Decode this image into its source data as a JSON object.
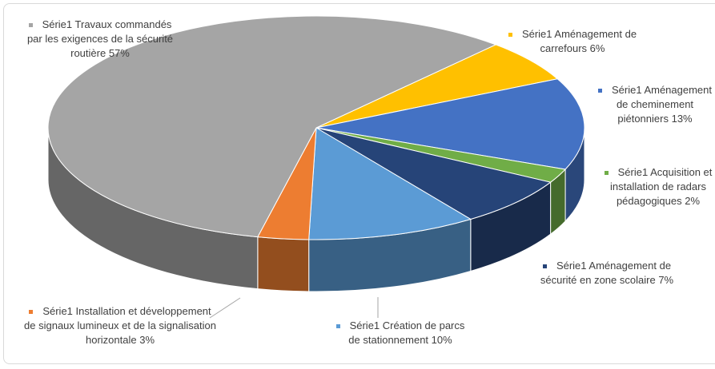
{
  "chart_data": {
    "type": "pie3d",
    "series_name": "Série1",
    "categories": [
      "Aménagement de carrefours",
      "Aménagement de cheminement piétonniers",
      "Acquisition et installation de radars pédagogiques",
      "Aménagement de sécurité en zone scolaire",
      "Création de parcs de stationnement",
      "Installation et développement de signaux lumineux et de la signalisation horizontale",
      "Travaux commandés par les exigences de la sécurité routière"
    ],
    "values": [
      6,
      13,
      2,
      7,
      10,
      3,
      57
    ],
    "value_labels": [
      "6%",
      "13%",
      "2%",
      "7%",
      "10%",
      "3%",
      "57%"
    ],
    "colors": [
      "#ffc000",
      "#4472c4",
      "#70ad47",
      "#264478",
      "#5b9bd5",
      "#ed7d31",
      "#a5a5a5"
    ]
  }
}
